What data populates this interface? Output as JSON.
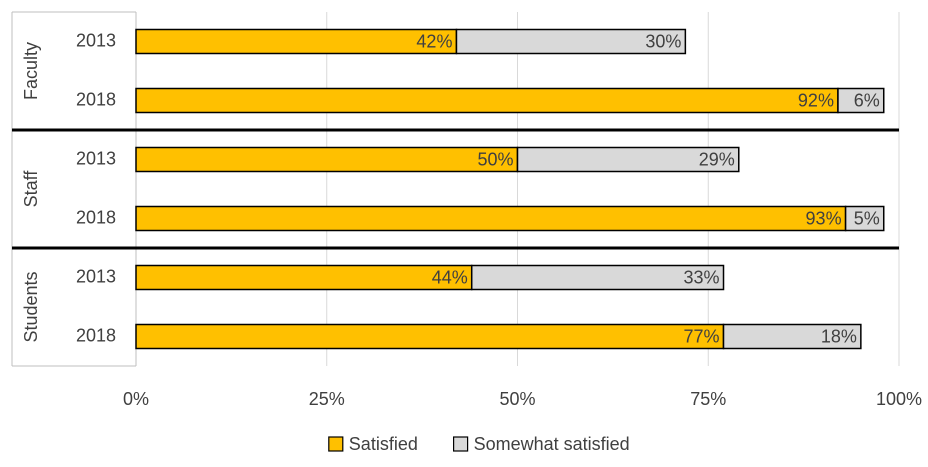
{
  "chart_data": {
    "type": "bar",
    "orientation": "horizontal",
    "stacked": true,
    "groups": [
      {
        "name": "Faculty",
        "categories": [
          "2013",
          "2018"
        ]
      },
      {
        "name": "Staff",
        "categories": [
          "2013",
          "2018"
        ]
      },
      {
        "name": "Students",
        "categories": [
          "2013",
          "2018"
        ]
      }
    ],
    "series": [
      {
        "name": "Satisfied",
        "color": "#FFC000",
        "values": [
          42,
          92,
          50,
          93,
          44,
          77
        ]
      },
      {
        "name": "Somewhat satisfied",
        "color": "#D9D9D9",
        "values": [
          30,
          6,
          29,
          5,
          33,
          18
        ]
      }
    ],
    "xlim": [
      0,
      100
    ],
    "x_ticks": [
      "0%",
      "25%",
      "50%",
      "75%",
      "100%"
    ],
    "grid": true,
    "legend": "bottom"
  }
}
